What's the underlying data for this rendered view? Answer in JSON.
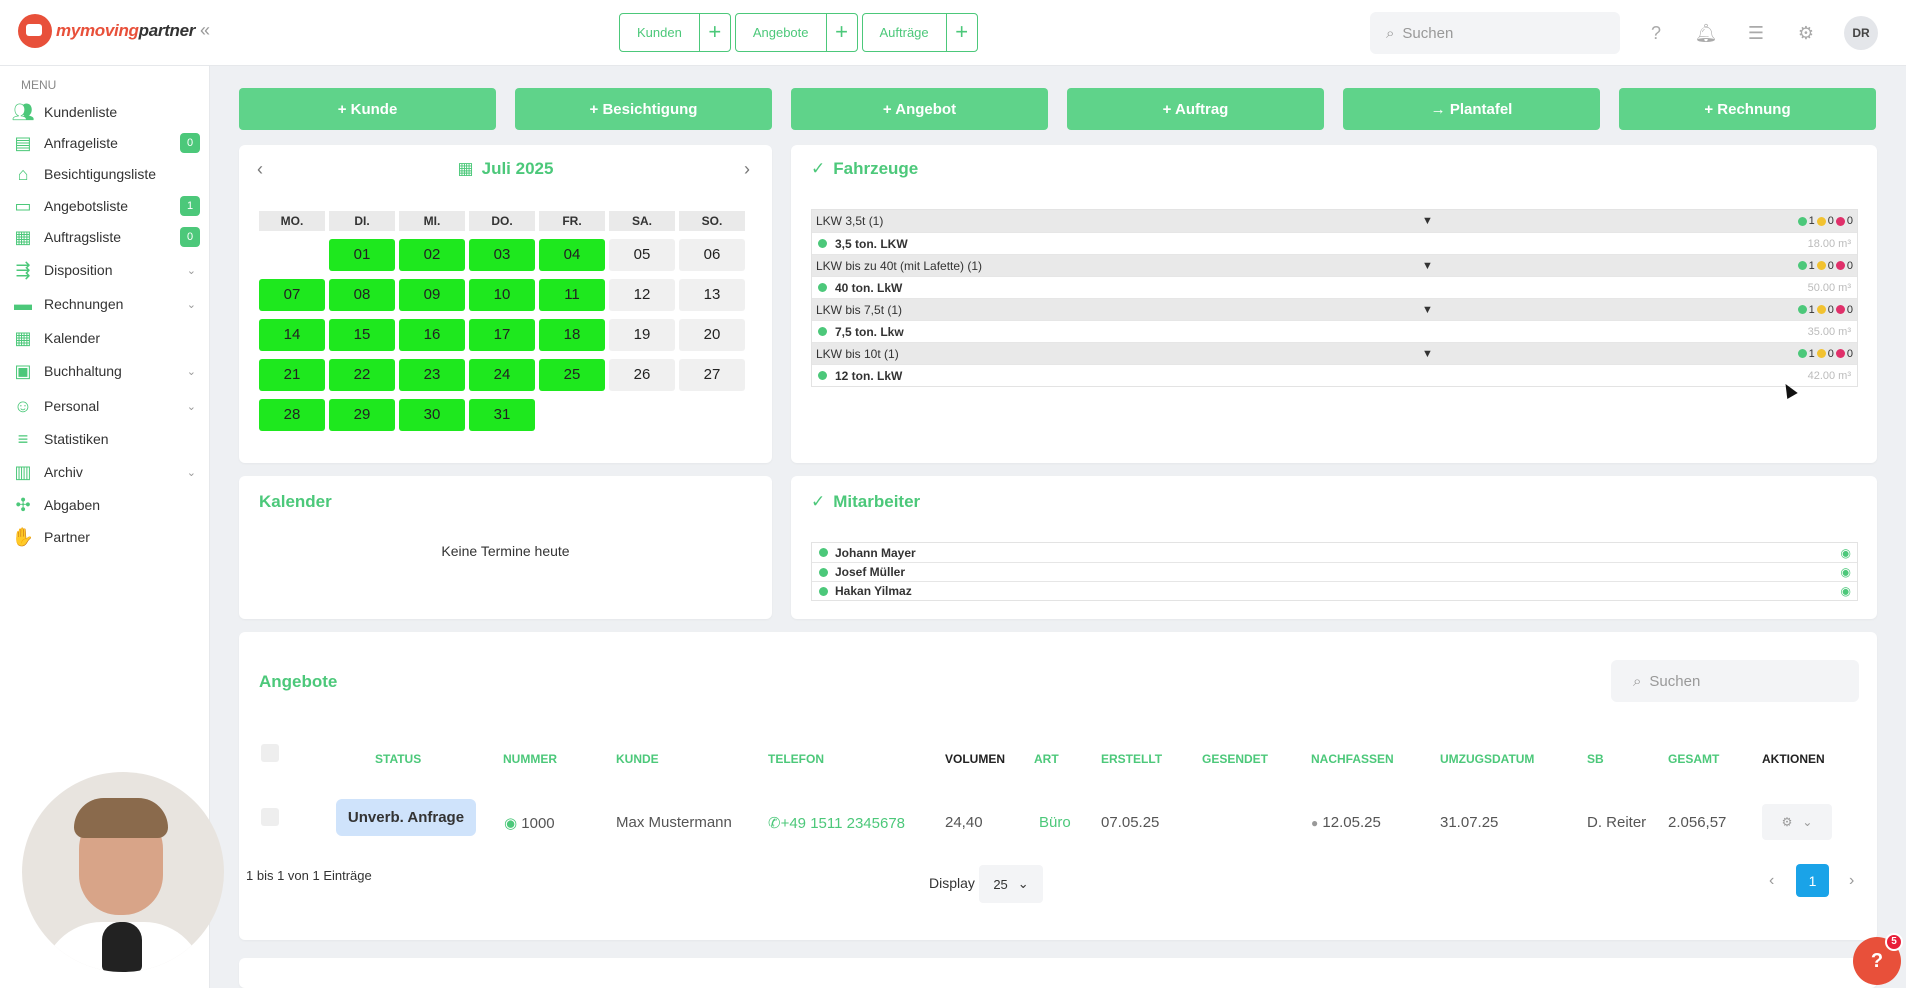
{
  "brand": {
    "name_a": "my",
    "name_b": "moving",
    "name_c": "partner"
  },
  "topbar": {
    "quicktabs": [
      {
        "label": "Kunden",
        "plus": "+"
      },
      {
        "label": "Angebote",
        "plus": "+"
      },
      {
        "label": "Aufträge",
        "plus": "+"
      }
    ],
    "search_placeholder": "Suchen",
    "user_initials": "DR"
  },
  "sidebar": {
    "menu_title": "MENU",
    "items": [
      {
        "label": "Kundenliste",
        "icon": "users-icon"
      },
      {
        "label": "Anfrageliste",
        "icon": "inbox-icon",
        "badge": "0"
      },
      {
        "label": "Besichtigungsliste",
        "icon": "home-icon"
      },
      {
        "label": "Angebotsliste",
        "icon": "document-icon",
        "badge": "1"
      },
      {
        "label": "Auftragsliste",
        "icon": "clipboard-icon",
        "badge": "0"
      },
      {
        "label": "Disposition",
        "icon": "dispatch-icon",
        "chevron": "⌄"
      },
      {
        "label": "Rechnungen",
        "icon": "invoice-icon",
        "chevron": "⌄"
      },
      {
        "label": "Kalender",
        "icon": "calendar-icon"
      },
      {
        "label": "Buchhaltung",
        "icon": "accounting-icon",
        "chevron": "⌄"
      },
      {
        "label": "Personal",
        "icon": "staff-icon",
        "chevron": "⌄"
      },
      {
        "label": "Statistiken",
        "icon": "stats-icon"
      },
      {
        "label": "Archiv",
        "icon": "archive-icon",
        "chevron": "⌄"
      },
      {
        "label": "Abgaben",
        "icon": "share-icon"
      },
      {
        "label": "Partner",
        "icon": "handshake-icon"
      }
    ]
  },
  "actions": [
    {
      "label": "+ Kunde"
    },
    {
      "label": "+ Besichtigung"
    },
    {
      "label": "+ Angebot"
    },
    {
      "label": "+ Auftrag"
    },
    {
      "label": "→ Plantafel"
    },
    {
      "label": "+ Rechnung"
    }
  ],
  "calendar": {
    "month": "Juli 2025",
    "weekdays": [
      "MO.",
      "DI.",
      "MI.",
      "DO.",
      "FR.",
      "SA.",
      "SO."
    ],
    "first_weekday_offset": 1,
    "days": [
      {
        "d": "01",
        "busy": true
      },
      {
        "d": "02",
        "busy": true
      },
      {
        "d": "03",
        "busy": true
      },
      {
        "d": "04",
        "busy": true
      },
      {
        "d": "05",
        "busy": false
      },
      {
        "d": "06",
        "busy": false
      },
      {
        "d": "07",
        "busy": true
      },
      {
        "d": "08",
        "busy": true
      },
      {
        "d": "09",
        "busy": true
      },
      {
        "d": "10",
        "busy": true
      },
      {
        "d": "11",
        "busy": true
      },
      {
        "d": "12",
        "busy": false
      },
      {
        "d": "13",
        "busy": false
      },
      {
        "d": "14",
        "busy": true
      },
      {
        "d": "15",
        "busy": true
      },
      {
        "d": "16",
        "busy": true
      },
      {
        "d": "17",
        "busy": true
      },
      {
        "d": "18",
        "busy": true
      },
      {
        "d": "19",
        "busy": false
      },
      {
        "d": "20",
        "busy": false
      },
      {
        "d": "21",
        "busy": true
      },
      {
        "d": "22",
        "busy": true
      },
      {
        "d": "23",
        "busy": true
      },
      {
        "d": "24",
        "busy": true
      },
      {
        "d": "25",
        "busy": true
      },
      {
        "d": "26",
        "busy": false
      },
      {
        "d": "27",
        "busy": false
      },
      {
        "d": "28",
        "busy": true
      },
      {
        "d": "29",
        "busy": true
      },
      {
        "d": "30",
        "busy": true
      },
      {
        "d": "31",
        "busy": true
      }
    ]
  },
  "vehicles": {
    "title": "Fahrzeuge",
    "groups": [
      {
        "name": "LKW 3,5t (1)",
        "arrow": "▼",
        "c1": "1",
        "c2": "0",
        "c3": "0",
        "item": "3,5 ton. LKW",
        "volume": "18.00 m³"
      },
      {
        "name": "LKW bis zu 40t (mit Lafette) (1)",
        "arrow": "▼",
        "c1": "1",
        "c2": "0",
        "c3": "0",
        "item": "40 ton. LkW",
        "volume": "50.00 m³"
      },
      {
        "name": "LKW bis 7,5t (1)",
        "arrow": "▼",
        "c1": "1",
        "c2": "0",
        "c3": "0",
        "item": "7,5 ton. Lkw",
        "volume": "35.00 m³"
      },
      {
        "name": "LKW bis 10t (1)",
        "arrow": "▼",
        "c1": "1",
        "c2": "0",
        "c3": "0",
        "item": "12 ton. LkW",
        "volume": "42.00 m³"
      }
    ]
  },
  "kalender_card": {
    "title": "Kalender",
    "empty": "Keine Termine heute"
  },
  "staff": {
    "title": "Mitarbeiter",
    "people": [
      "Johann Mayer",
      "Josef Müller",
      "Hakan Yilmaz"
    ]
  },
  "offers": {
    "title": "Angebote",
    "search_placeholder": "Suchen",
    "columns": [
      "STATUS",
      "NUMMER",
      "KUNDE",
      "TELEFON",
      "VOLUMEN",
      "ART",
      "ERSTELLT",
      "GESENDET",
      "NACHFASSEN",
      "UMZUGSDATUM",
      "SB",
      "GESAMT",
      "AKTIONEN"
    ],
    "row": {
      "status": "Unverb. Anfrage",
      "number": "1000",
      "customer": "Max Mustermann",
      "phone": "+49 1511 2345678",
      "volume": "24,40",
      "type": "Büro",
      "created": "07.05.25",
      "followup": "12.05.25",
      "move_date": "31.07.25",
      "sb": "D. Reiter",
      "total": "2.056,57"
    },
    "summary": "1 bis 1 von 1 Einträge",
    "display_label": "Display",
    "page_size": "25",
    "current_page": "1"
  },
  "help": {
    "label": "?",
    "count": "5"
  }
}
